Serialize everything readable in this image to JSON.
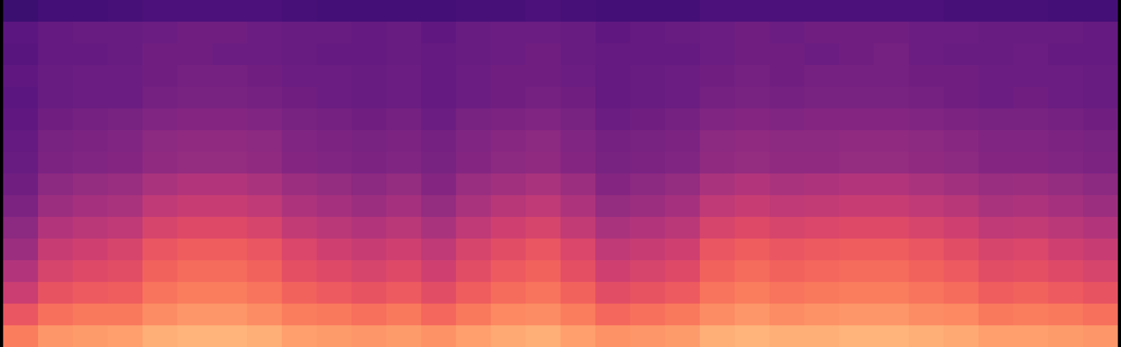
{
  "chart_data": {
    "type": "heatmap",
    "color": "magma",
    "zlim": [
      0,
      100
    ],
    "tick_labels": false,
    "cells": [
      [
        20,
        22,
        22,
        23,
        24,
        24,
        24,
        24,
        23,
        22,
        22,
        22,
        22,
        23,
        23,
        24,
        23,
        22,
        22,
        22,
        24,
        24,
        24,
        24,
        24,
        24,
        24,
        23,
        23,
        23,
        22,
        22
      ],
      [
        28,
        30,
        31,
        31,
        32,
        33,
        33,
        32,
        31,
        31,
        30,
        31,
        29,
        31,
        32,
        32,
        31,
        29,
        30,
        31,
        32,
        33,
        32,
        33,
        33,
        33,
        32,
        32,
        31,
        31,
        31,
        30
      ],
      [
        27,
        30,
        30,
        31,
        33,
        33,
        32,
        32,
        31,
        30,
        30,
        31,
        30,
        31,
        32,
        33,
        31,
        30,
        30,
        30,
        32,
        33,
        33,
        32,
        33,
        34,
        32,
        31,
        31,
        32,
        30,
        30
      ],
      [
        29,
        31,
        32,
        32,
        33,
        34,
        34,
        33,
        32,
        32,
        31,
        32,
        30,
        32,
        33,
        33,
        32,
        30,
        31,
        32,
        33,
        34,
        33,
        34,
        34,
        34,
        33,
        33,
        32,
        32,
        32,
        31
      ],
      [
        28,
        31,
        32,
        32,
        34,
        35,
        35,
        34,
        33,
        32,
        31,
        32,
        30,
        32,
        33,
        34,
        33,
        30,
        31,
        32,
        34,
        35,
        34,
        35,
        35,
        35,
        34,
        33,
        32,
        33,
        32,
        31
      ],
      [
        29,
        33,
        34,
        35,
        37,
        38,
        38,
        37,
        35,
        34,
        33,
        34,
        32,
        35,
        36,
        37,
        35,
        32,
        33,
        34,
        37,
        38,
        37,
        38,
        38,
        38,
        37,
        36,
        35,
        35,
        34,
        33
      ],
      [
        30,
        35,
        36,
        37,
        40,
        41,
        41,
        40,
        37,
        36,
        35,
        36,
        34,
        37,
        39,
        40,
        37,
        34,
        35,
        36,
        40,
        41,
        40,
        40,
        41,
        41,
        40,
        39,
        37,
        37,
        36,
        35
      ],
      [
        31,
        36,
        37,
        38,
        41,
        42,
        42,
        41,
        38,
        37,
        36,
        37,
        35,
        38,
        40,
        41,
        38,
        35,
        36,
        37,
        41,
        42,
        41,
        41,
        42,
        42,
        41,
        40,
        38,
        38,
        37,
        36
      ],
      [
        33,
        40,
        42,
        43,
        47,
        49,
        49,
        47,
        44,
        42,
        40,
        42,
        38,
        43,
        45,
        47,
        44,
        38,
        40,
        42,
        47,
        49,
        47,
        48,
        49,
        49,
        47,
        45,
        43,
        44,
        42,
        40
      ],
      [
        36,
        44,
        46,
        47,
        52,
        54,
        54,
        52,
        48,
        46,
        44,
        46,
        42,
        47,
        50,
        52,
        48,
        42,
        44,
        46,
        52,
        54,
        52,
        53,
        54,
        54,
        52,
        50,
        47,
        48,
        46,
        44
      ],
      [
        40,
        49,
        51,
        52,
        58,
        60,
        60,
        58,
        53,
        51,
        49,
        51,
        47,
        52,
        56,
        58,
        53,
        47,
        49,
        51,
        58,
        60,
        58,
        59,
        60,
        60,
        58,
        56,
        52,
        53,
        51,
        49
      ],
      [
        44,
        54,
        56,
        58,
        64,
        66,
        66,
        64,
        59,
        56,
        54,
        56,
        52,
        58,
        61,
        64,
        59,
        52,
        54,
        56,
        64,
        66,
        64,
        65,
        66,
        66,
        64,
        61,
        58,
        59,
        56,
        54
      ],
      [
        49,
        58,
        60,
        61,
        67,
        69,
        69,
        67,
        62,
        60,
        58,
        60,
        56,
        61,
        65,
        67,
        62,
        56,
        58,
        60,
        67,
        69,
        67,
        68,
        69,
        69,
        67,
        65,
        61,
        62,
        60,
        58
      ],
      [
        55,
        63,
        65,
        66,
        71,
        73,
        73,
        71,
        67,
        65,
        63,
        65,
        61,
        66,
        69,
        71,
        67,
        61,
        63,
        65,
        71,
        73,
        71,
        72,
        73,
        73,
        71,
        69,
        66,
        67,
        65,
        63
      ],
      [
        64,
        70,
        72,
        72,
        76,
        78,
        78,
        76,
        73,
        72,
        70,
        72,
        68,
        72,
        75,
        76,
        73,
        68,
        70,
        72,
        76,
        78,
        76,
        77,
        78,
        78,
        76,
        75,
        72,
        73,
        72,
        70
      ],
      [
        73,
        78,
        79,
        80,
        83,
        84,
        84,
        83,
        80,
        79,
        78,
        79,
        77,
        80,
        82,
        83,
        80,
        77,
        78,
        79,
        83,
        84,
        83,
        83,
        84,
        84,
        83,
        82,
        80,
        80,
        79,
        78
      ]
    ]
  }
}
